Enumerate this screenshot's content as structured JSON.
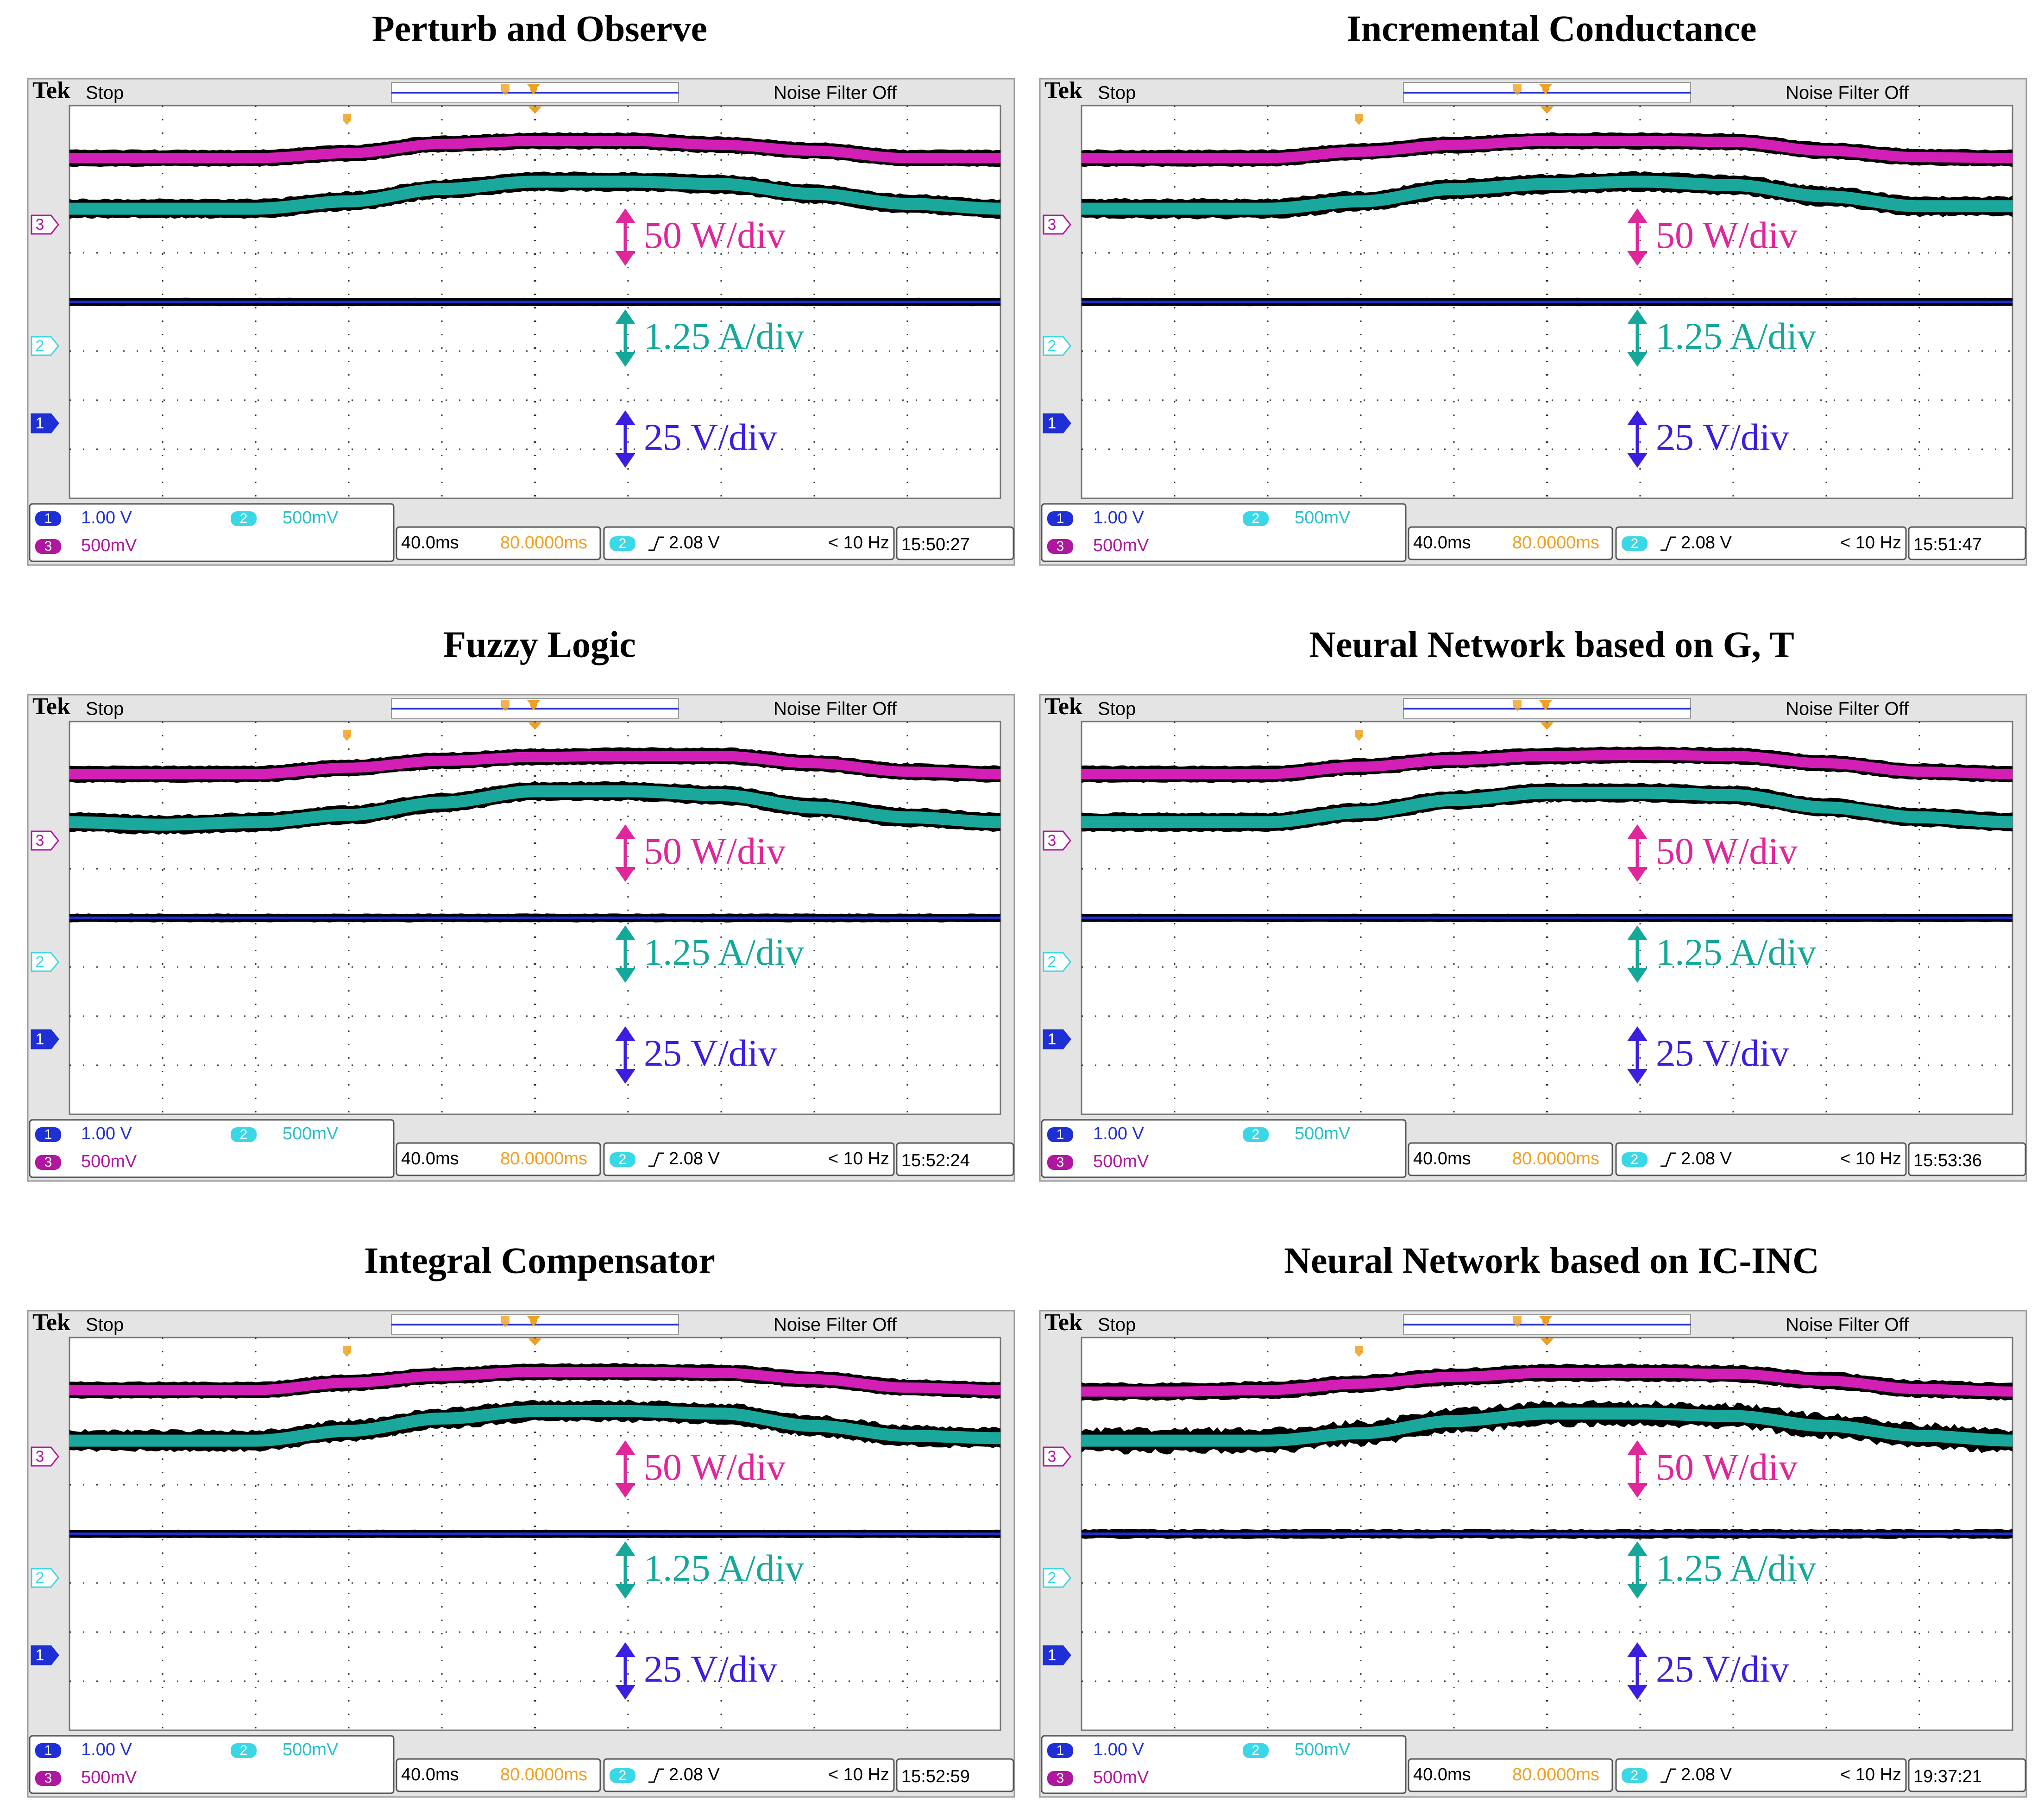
{
  "figure": {
    "id_note": "Six oscilloscope captures comparing MPPT methods"
  },
  "colors": {
    "power_trace": "#d41fb6",
    "current_trace": "#1aa89c",
    "voltage_trace": "#1f2fd6",
    "power_label": "#e0269a",
    "current_label": "#14a89a",
    "voltage_label": "#3a1fe0",
    "ch1_badge": "#1f2fd6",
    "ch2_badge": "#3ad8e6",
    "ch3_badge": "#b0179f",
    "trigger_marker": "#f0a020",
    "time_offset": "#f0a020"
  },
  "scope": {
    "brand": "Tek",
    "run_state": "Stop",
    "noise_filter": "Noise Filter Off",
    "ch1_marker": "1",
    "ch2_marker": "2",
    "ch3_marker": "3",
    "ch1_scale": "1.00 V",
    "ch2_scale": "500mV",
    "ch3_scale": "500mV",
    "timebase": "40.0ms",
    "time_offset": "80.0000ms",
    "trigger_channel": "2",
    "trigger_level": "2.08 V",
    "trigger_freq": "< 10 Hz"
  },
  "scale_labels": {
    "power": "50 W/div",
    "current": "1.25 A/div",
    "voltage": "25 V/div"
  },
  "chart_data": [
    {
      "type": "line",
      "title": "Perturb and Observe",
      "timestamp": "15:50:27",
      "x_range_div": [
        0,
        10
      ],
      "y_range_div": [
        -4,
        4
      ],
      "series": [
        {
          "name": "Power (CH3)",
          "x": [
            0,
            1,
            2,
            3,
            4,
            5,
            6,
            7,
            8,
            9,
            10
          ],
          "values": [
            2.93,
            2.93,
            2.93,
            3.03,
            3.22,
            3.28,
            3.28,
            3.2,
            3.08,
            2.93,
            2.93
          ]
        },
        {
          "name": "Current (CH2)",
          "x": [
            0,
            1,
            2,
            3,
            4,
            5,
            6,
            7,
            8,
            9,
            10
          ],
          "values": [
            1.9,
            1.9,
            1.9,
            2.05,
            2.3,
            2.45,
            2.45,
            2.4,
            2.2,
            2.0,
            1.9
          ]
        },
        {
          "name": "Voltage (CH1)",
          "x": [
            0,
            10
          ],
          "values": [
            0.0,
            0.0
          ]
        }
      ]
    },
    {
      "type": "line",
      "title": "Incremental Conductance",
      "timestamp": "15:51:47",
      "x_range_div": [
        0,
        10
      ],
      "y_range_div": [
        -4,
        4
      ],
      "series": [
        {
          "name": "Power (CH3)",
          "x": [
            0,
            1,
            2,
            3,
            4,
            5,
            6,
            7,
            8,
            9,
            10
          ],
          "values": [
            2.93,
            2.93,
            2.93,
            3.06,
            3.2,
            3.28,
            3.28,
            3.26,
            3.08,
            2.95,
            2.93
          ]
        },
        {
          "name": "Current (CH2)",
          "x": [
            0,
            1,
            2,
            3,
            4,
            5,
            6,
            7,
            8,
            9,
            10
          ],
          "values": [
            1.9,
            1.9,
            1.9,
            2.05,
            2.3,
            2.4,
            2.45,
            2.38,
            2.15,
            1.95,
            1.95
          ]
        },
        {
          "name": "Voltage (CH1)",
          "x": [
            0,
            10
          ],
          "values": [
            0.0,
            0.0
          ]
        }
      ]
    },
    {
      "type": "line",
      "title": "Fuzzy Logic",
      "timestamp": "15:52:24",
      "x_range_div": [
        0,
        10
      ],
      "y_range_div": [
        -4,
        4
      ],
      "series": [
        {
          "name": "Power (CH3)",
          "x": [
            0,
            1,
            2,
            3,
            4,
            5,
            6,
            7,
            8,
            9,
            10
          ],
          "values": [
            2.93,
            2.93,
            2.93,
            3.06,
            3.2,
            3.28,
            3.3,
            3.3,
            3.15,
            2.98,
            2.93
          ]
        },
        {
          "name": "Current (CH2)",
          "x": [
            0,
            1,
            2,
            3,
            4,
            5,
            6,
            7,
            8,
            9,
            10
          ],
          "values": [
            1.95,
            1.9,
            1.95,
            2.1,
            2.35,
            2.58,
            2.58,
            2.5,
            2.25,
            2.05,
            1.95
          ]
        },
        {
          "name": "Voltage (CH1)",
          "x": [
            0,
            10
          ],
          "values": [
            0.0,
            0.0
          ]
        }
      ]
    },
    {
      "type": "line",
      "title": "Neural Network based on G, T",
      "timestamp": "15:53:36",
      "x_range_div": [
        0,
        10
      ],
      "y_range_div": [
        -4,
        4
      ],
      "series": [
        {
          "name": "Power (CH3)",
          "x": [
            0,
            1,
            2,
            3,
            4,
            5,
            6,
            7,
            8,
            9,
            10
          ],
          "values": [
            2.93,
            2.93,
            2.93,
            3.08,
            3.22,
            3.3,
            3.32,
            3.3,
            3.15,
            2.98,
            2.93
          ]
        },
        {
          "name": "Current (CH2)",
          "x": [
            0,
            1,
            2,
            3,
            4,
            5,
            6,
            7,
            8,
            9,
            10
          ],
          "values": [
            1.95,
            1.95,
            1.95,
            2.15,
            2.4,
            2.55,
            2.55,
            2.5,
            2.25,
            2.05,
            1.95
          ]
        },
        {
          "name": "Voltage (CH1)",
          "x": [
            0,
            10
          ],
          "values": [
            0.0,
            0.0
          ]
        }
      ]
    },
    {
      "type": "line",
      "title": "Integral Compensator",
      "timestamp": "15:52:59",
      "x_range_div": [
        0,
        10
      ],
      "y_range_div": [
        -4,
        4
      ],
      "series": [
        {
          "name": "Power (CH3)",
          "x": [
            0,
            1,
            2,
            3,
            4,
            5,
            6,
            7,
            8,
            9,
            10
          ],
          "values": [
            2.93,
            2.93,
            2.93,
            3.08,
            3.22,
            3.3,
            3.3,
            3.28,
            3.15,
            2.98,
            2.93
          ]
        },
        {
          "name": "Current (CH2)",
          "x": [
            0,
            1,
            2,
            3,
            4,
            5,
            6,
            7,
            8,
            9,
            10
          ],
          "values": [
            1.9,
            1.9,
            1.9,
            2.1,
            2.35,
            2.5,
            2.5,
            2.45,
            2.2,
            2.0,
            1.95
          ]
        },
        {
          "name": "Voltage (CH1)",
          "x": [
            0,
            10
          ],
          "values": [
            0.0,
            0.0
          ]
        }
      ]
    },
    {
      "type": "line",
      "title": "Neural Network based on IC-INC",
      "timestamp": "19:37:21",
      "x_range_div": [
        0,
        10
      ],
      "y_range_div": [
        -4,
        4
      ],
      "series": [
        {
          "name": "Power (CH3)",
          "x": [
            0,
            1,
            2,
            3,
            4,
            5,
            6,
            7,
            8,
            9,
            10
          ],
          "values": [
            2.9,
            2.9,
            2.93,
            3.06,
            3.2,
            3.28,
            3.28,
            3.26,
            3.12,
            2.95,
            2.9
          ]
        },
        {
          "name": "Current (CH2)",
          "x": [
            0,
            1,
            2,
            3,
            4,
            5,
            6,
            7,
            8,
            9,
            10
          ],
          "values": [
            1.9,
            1.9,
            1.9,
            2.05,
            2.3,
            2.45,
            2.45,
            2.4,
            2.2,
            2.0,
            1.9
          ]
        },
        {
          "name": "Voltage (CH1)",
          "x": [
            0,
            10
          ],
          "values": [
            0.0,
            0.0
          ]
        }
      ]
    }
  ]
}
